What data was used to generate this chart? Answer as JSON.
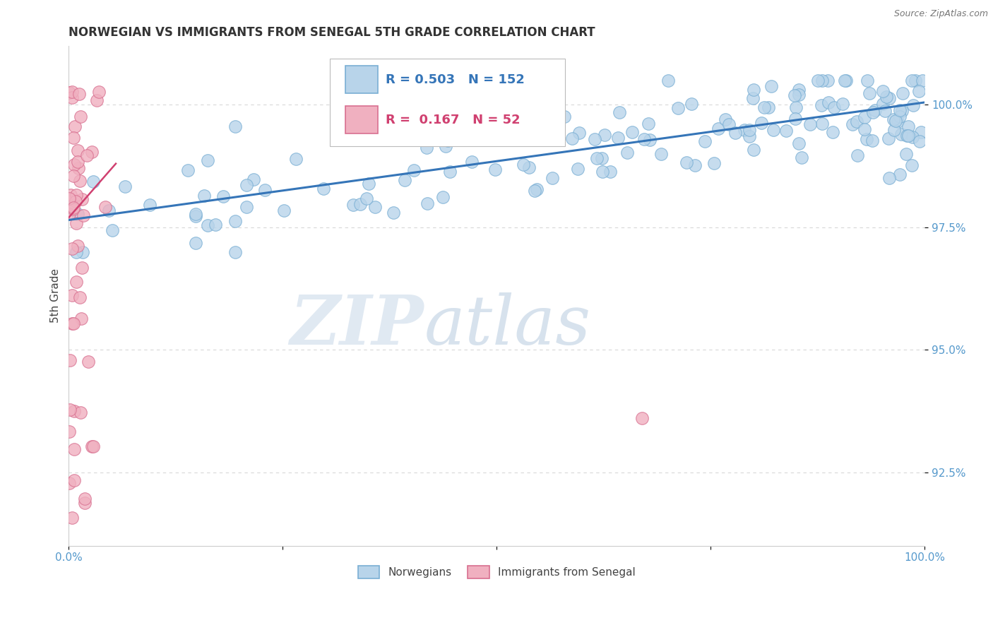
{
  "title": "NORWEGIAN VS IMMIGRANTS FROM SENEGAL 5TH GRADE CORRELATION CHART",
  "source": "Source: ZipAtlas.com",
  "ylabel": "5th Grade",
  "xlim": [
    0.0,
    100.0
  ],
  "ylim": [
    91.0,
    101.2
  ],
  "yticks": [
    92.5,
    95.0,
    97.5,
    100.0
  ],
  "ytick_labels": [
    "92.5%",
    "95.0%",
    "97.5%",
    "100.0%"
  ],
  "xtick_labels": [
    "0.0%",
    "",
    "",
    "",
    "100.0%"
  ],
  "legend_r_blue": "R = 0.503",
  "legend_n_blue": "N = 152",
  "legend_r_pink": "R = 0.167",
  "legend_n_pink": "N = 52",
  "legend_label_blue": "Norwegians",
  "legend_label_pink": "Immigrants from Senegal",
  "blue_color": "#b8d4ea",
  "blue_edge": "#7aafd4",
  "pink_color": "#f0b0c0",
  "pink_edge": "#d87090",
  "blue_line_color": "#3575b8",
  "pink_line_color": "#d04070",
  "watermark_zip": "ZIP",
  "watermark_atlas": "atlas",
  "background_color": "#ffffff",
  "grid_color": "#d8d8d8",
  "tick_color": "#5599cc",
  "blue_trend_x0": 0.0,
  "blue_trend_y0": 97.65,
  "blue_trend_x1": 100.0,
  "blue_trend_y1": 100.05,
  "pink_trend_x0": 0.0,
  "pink_trend_y0": 97.7,
  "pink_trend_x1": 5.5,
  "pink_trend_y1": 98.8
}
